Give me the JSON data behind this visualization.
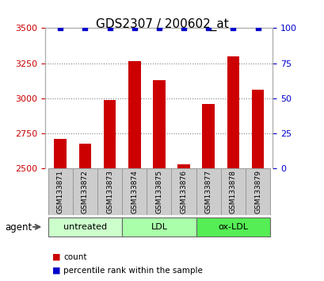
{
  "title": "GDS2307 / 200602_at",
  "samples": [
    "GSM133871",
    "GSM133872",
    "GSM133873",
    "GSM133874",
    "GSM133875",
    "GSM133876",
    "GSM133877",
    "GSM133878",
    "GSM133879"
  ],
  "counts": [
    2710,
    2680,
    2990,
    3265,
    3130,
    2530,
    2960,
    3300,
    3060
  ],
  "percentiles": [
    100,
    100,
    100,
    100,
    100,
    100,
    100,
    100,
    100
  ],
  "ylim_left": [
    2500,
    3500
  ],
  "ylim_right": [
    0,
    100
  ],
  "yticks_left": [
    2500,
    2750,
    3000,
    3250,
    3500
  ],
  "yticks_right": [
    0,
    25,
    50,
    75,
    100
  ],
  "bar_color": "#cc0000",
  "dot_color": "#0000cc",
  "group_defs": [
    {
      "start": 0,
      "end": 2,
      "label": "untreated",
      "color": "#ccffcc"
    },
    {
      "start": 3,
      "end": 5,
      "label": "LDL",
      "color": "#aaffaa"
    },
    {
      "start": 6,
      "end": 8,
      "label": "ox-LDL",
      "color": "#55ee55"
    }
  ],
  "legend_count_color": "#cc0000",
  "legend_pct_color": "#0000cc",
  "tick_label_color_left": "#cc0000",
  "tick_label_color_right": "#0000cc",
  "xlabel_agent": "agent",
  "sample_bg_color": "#cccccc",
  "sample_border_color": "#999999"
}
